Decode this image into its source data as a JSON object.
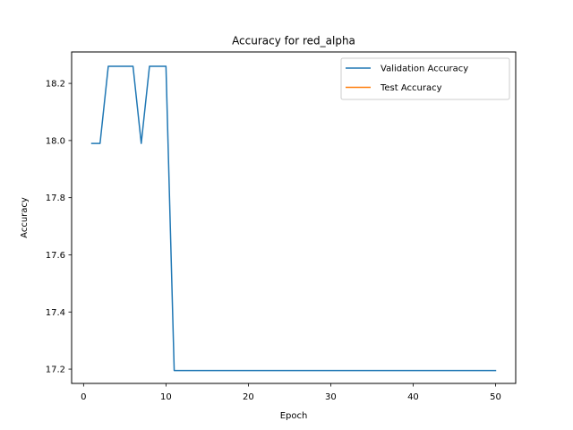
{
  "chart_data": {
    "type": "line",
    "title": "Accuracy for red_alpha",
    "xlabel": "Epoch",
    "ylabel": "Accuracy",
    "xlim": [
      -1.45,
      52.45
    ],
    "ylim": [
      17.15,
      18.31
    ],
    "xticks": [
      0,
      10,
      20,
      30,
      40,
      50
    ],
    "yticks": [
      17.2,
      17.4,
      17.6,
      17.8,
      18.0,
      18.2
    ],
    "ytick_labels": [
      "17.2",
      "17.4",
      "17.6",
      "17.8",
      "18.0",
      "18.2"
    ],
    "grid": false,
    "legend_position": "upper right",
    "series": [
      {
        "name": "Validation Accuracy",
        "color": "#1f77b4",
        "x": [
          1,
          2,
          3,
          4,
          5,
          6,
          7,
          8,
          9,
          10,
          11,
          12,
          13,
          14,
          15,
          16,
          17,
          18,
          19,
          20,
          21,
          22,
          23,
          24,
          25,
          26,
          27,
          28,
          29,
          30,
          31,
          32,
          33,
          34,
          35,
          36,
          37,
          38,
          39,
          40,
          41,
          42,
          43,
          44,
          45,
          46,
          47,
          48,
          49,
          50
        ],
        "y": [
          17.99,
          17.99,
          18.26,
          18.26,
          18.26,
          18.26,
          17.99,
          18.26,
          18.26,
          18.26,
          17.195,
          17.195,
          17.195,
          17.195,
          17.195,
          17.195,
          17.195,
          17.195,
          17.195,
          17.195,
          17.195,
          17.195,
          17.195,
          17.195,
          17.195,
          17.195,
          17.195,
          17.195,
          17.195,
          17.195,
          17.195,
          17.195,
          17.195,
          17.195,
          17.195,
          17.195,
          17.195,
          17.195,
          17.195,
          17.195,
          17.195,
          17.195,
          17.195,
          17.195,
          17.195,
          17.195,
          17.195,
          17.195,
          17.195,
          17.195
        ]
      },
      {
        "name": "Test Accuracy",
        "color": "#ff7f0e",
        "x": [],
        "y": []
      }
    ]
  }
}
